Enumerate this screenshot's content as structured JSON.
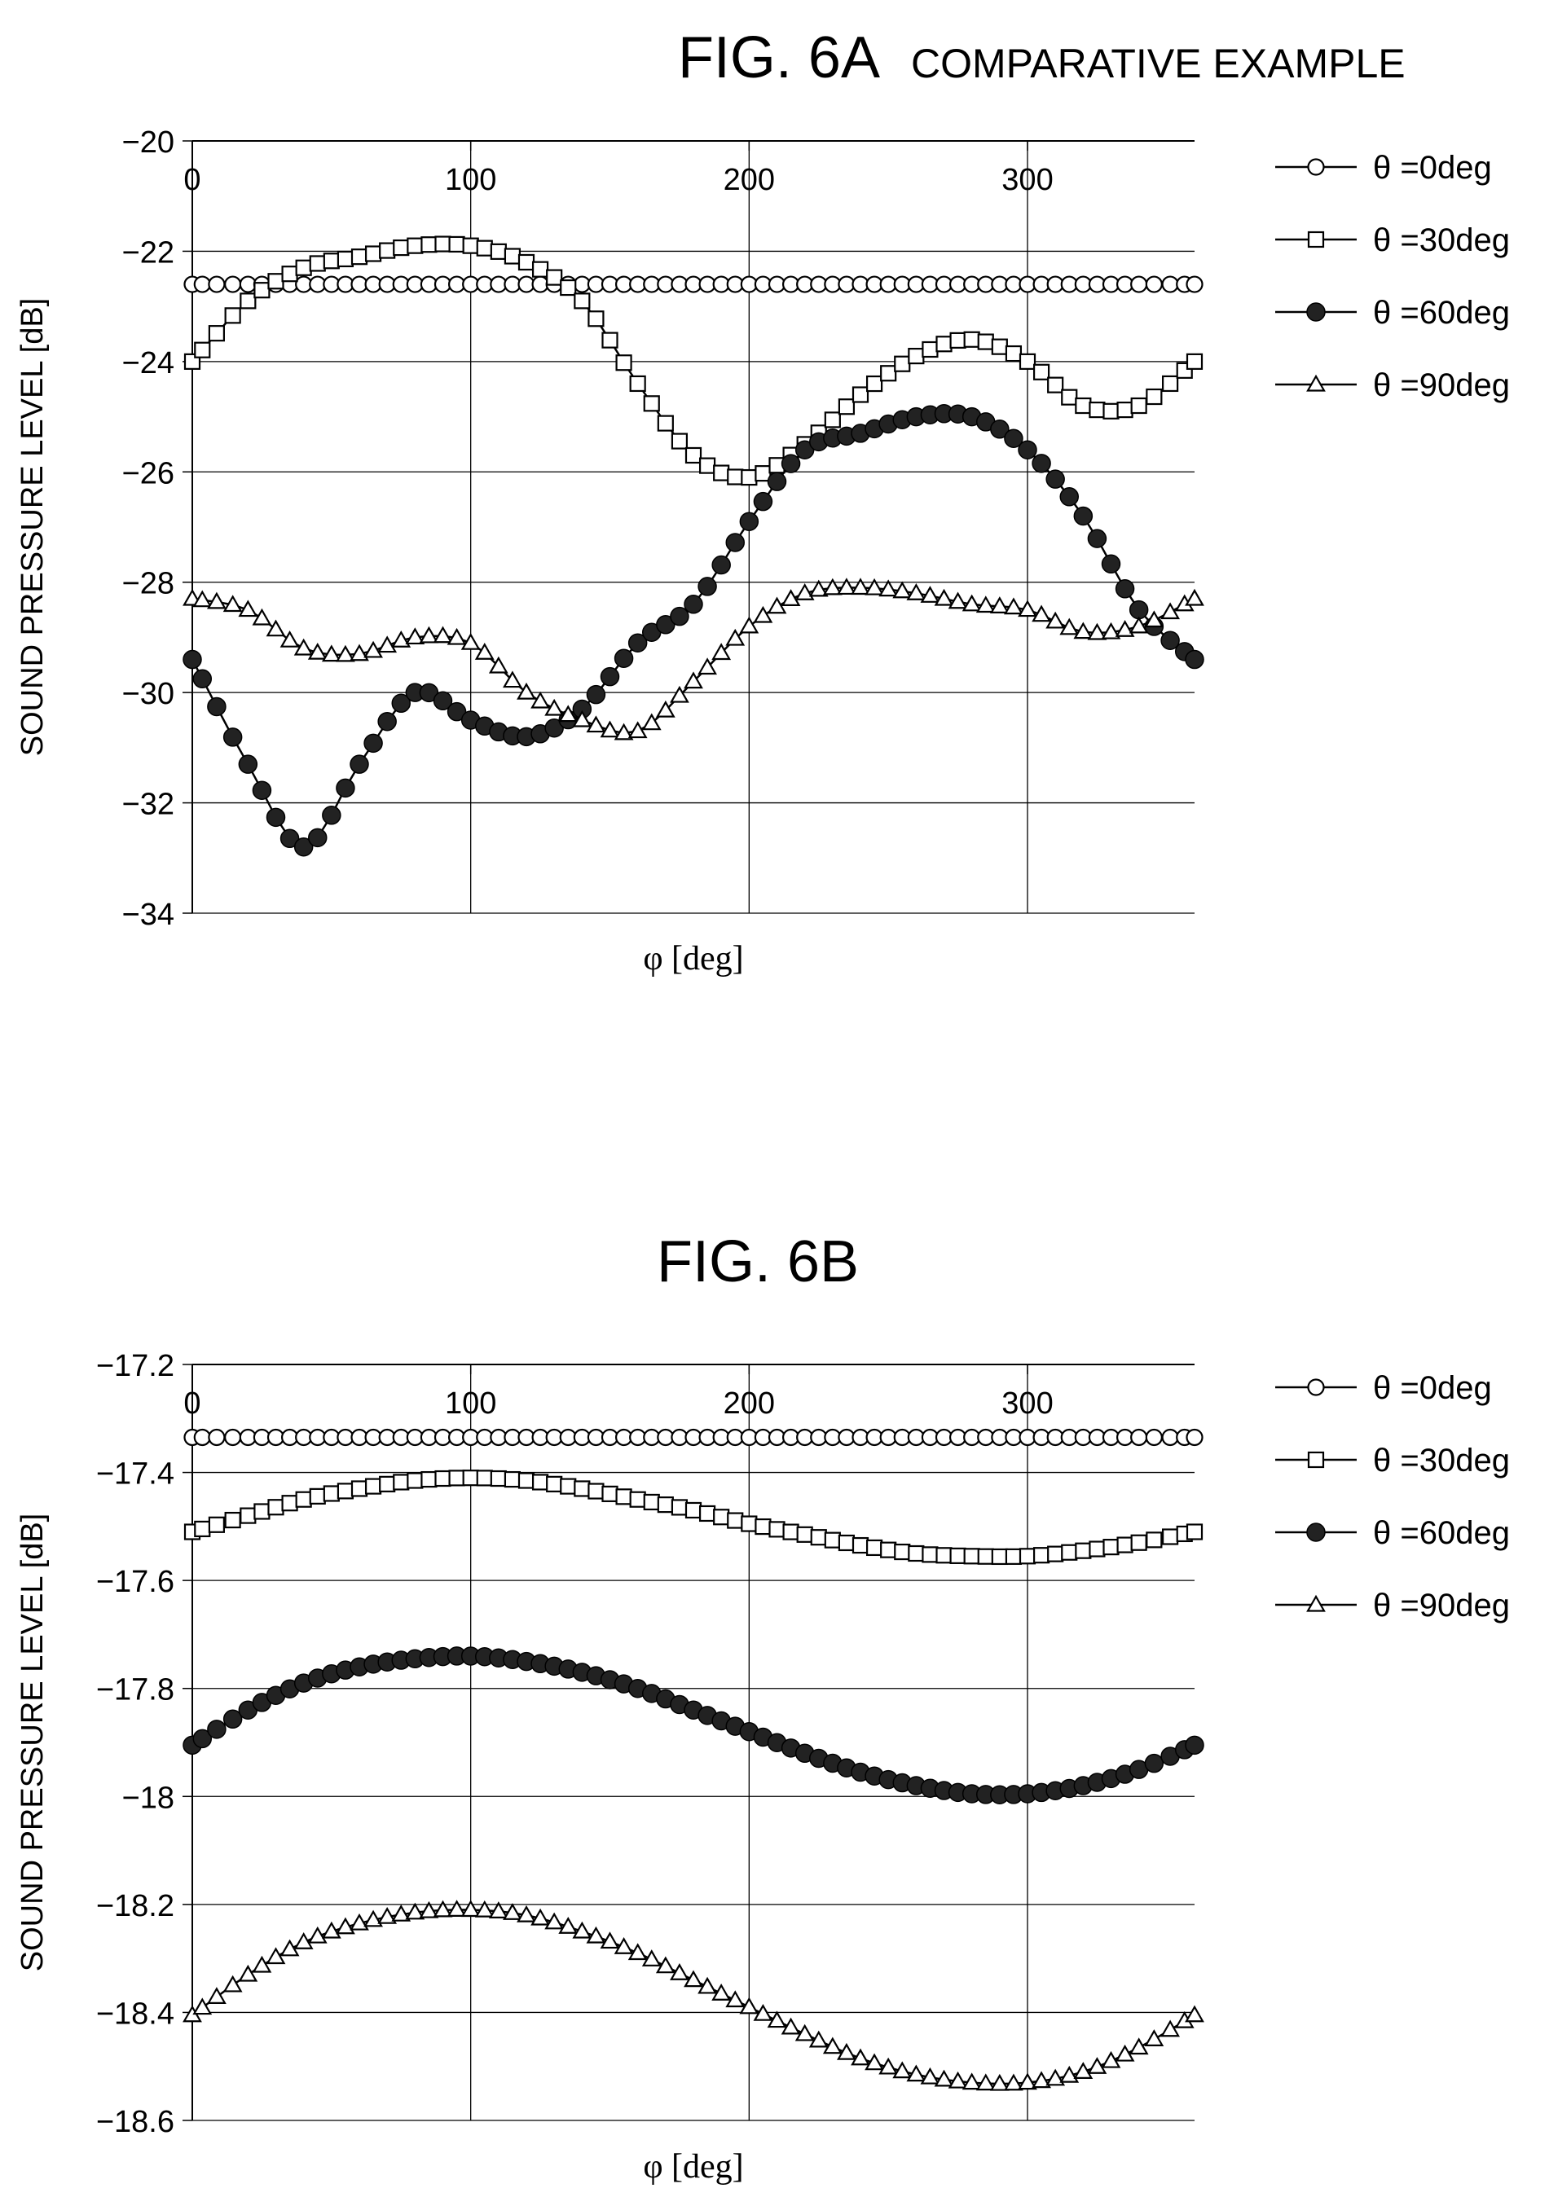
{
  "chart_data": [
    {
      "type": "line",
      "fig_label": "FIG. 6A",
      "subtitle": "COMPARATIVE EXAMPLE",
      "xlabel": "φ [deg]",
      "ylabel": "SOUND PRESSURE LEVEL [dB]",
      "xlim": [
        0,
        360
      ],
      "ylim": [
        -34,
        -20
      ],
      "xticks": [
        0,
        100,
        200,
        300
      ],
      "xtick_labels": [
        "0",
        "100",
        "200",
        "300"
      ],
      "yticks": [
        -34,
        -32,
        -30,
        -28,
        -26,
        -24,
        -22,
        -20
      ],
      "ytick_labels": [
        "−34",
        "−32",
        "−30",
        "−28",
        "−26",
        "−24",
        "−22",
        "−20"
      ],
      "grid": true,
      "legend_position": "right",
      "x": [
        0,
        20,
        40,
        60,
        80,
        100,
        120,
        140,
        160,
        180,
        200,
        220,
        240,
        260,
        280,
        300,
        320,
        340,
        360
      ],
      "series": [
        {
          "name": "θ =0deg",
          "marker": "open-circle",
          "values": [
            -22.6,
            -22.6,
            -22.6,
            -22.6,
            -22.6,
            -22.6,
            -22.6,
            -22.6,
            -22.6,
            -22.6,
            -22.6,
            -22.6,
            -22.6,
            -22.6,
            -22.6,
            -22.6,
            -22.6,
            -22.6,
            -22.6
          ]
        },
        {
          "name": "θ =30deg",
          "marker": "open-square",
          "values": [
            -24.0,
            -22.9,
            -22.3,
            -22.1,
            -21.9,
            -21.9,
            -22.2,
            -22.9,
            -24.4,
            -25.7,
            -26.1,
            -25.5,
            -24.6,
            -23.9,
            -23.6,
            -24.0,
            -24.8,
            -24.8,
            -24.0
          ]
        },
        {
          "name": "θ =60deg",
          "marker": "filled-circle",
          "values": [
            -29.4,
            -31.3,
            -32.8,
            -31.3,
            -30.0,
            -30.5,
            -30.8,
            -30.3,
            -29.1,
            -28.4,
            -26.9,
            -25.6,
            -25.3,
            -25.0,
            -25.0,
            -25.6,
            -26.8,
            -28.5,
            -29.4
          ]
        },
        {
          "name": "θ =90deg",
          "marker": "open-triangle",
          "values": [
            -28.3,
            -28.5,
            -29.2,
            -29.3,
            -29.0,
            -29.1,
            -30.0,
            -30.5,
            -30.7,
            -29.8,
            -28.8,
            -28.2,
            -28.1,
            -28.2,
            -28.4,
            -28.5,
            -28.9,
            -28.8,
            -28.3
          ]
        }
      ]
    },
    {
      "type": "line",
      "fig_label": "FIG. 6B",
      "subtitle": "",
      "xlabel": "φ [deg]",
      "ylabel": "SOUND PRESSURE LEVEL [dB]",
      "xlim": [
        0,
        360
      ],
      "ylim": [
        -18.6,
        -17.2
      ],
      "xticks": [
        0,
        100,
        200,
        300
      ],
      "xtick_labels": [
        "0",
        "100",
        "200",
        "300"
      ],
      "yticks": [
        -18.6,
        -18.4,
        -18.2,
        -18,
        -17.8,
        -17.6,
        -17.4,
        -17.2
      ],
      "ytick_labels": [
        "−18.6",
        "−18.4",
        "−18.2",
        "−18",
        "−17.8",
        "−17.6",
        "−17.4",
        "−17.2"
      ],
      "grid": true,
      "legend_position": "right",
      "x": [
        0,
        20,
        40,
        60,
        80,
        100,
        120,
        140,
        160,
        180,
        200,
        220,
        240,
        260,
        280,
        300,
        320,
        340,
        360
      ],
      "series": [
        {
          "name": "θ =0deg",
          "marker": "open-circle",
          "values": [
            -17.335,
            -17.335,
            -17.335,
            -17.335,
            -17.335,
            -17.335,
            -17.335,
            -17.335,
            -17.335,
            -17.335,
            -17.335,
            -17.335,
            -17.335,
            -17.335,
            -17.335,
            -17.335,
            -17.335,
            -17.335,
            -17.335
          ]
        },
        {
          "name": "θ =30deg",
          "marker": "open-square",
          "values": [
            -17.51,
            -17.48,
            -17.45,
            -17.43,
            -17.415,
            -17.41,
            -17.415,
            -17.43,
            -17.45,
            -17.47,
            -17.495,
            -17.515,
            -17.535,
            -17.55,
            -17.555,
            -17.555,
            -17.545,
            -17.53,
            -17.51
          ]
        },
        {
          "name": "θ =60deg",
          "marker": "filled-circle",
          "values": [
            -17.905,
            -17.84,
            -17.79,
            -17.76,
            -17.745,
            -17.74,
            -17.75,
            -17.77,
            -17.8,
            -17.84,
            -17.88,
            -17.92,
            -17.955,
            -17.98,
            -17.995,
            -17.995,
            -17.98,
            -17.95,
            -17.905
          ]
        },
        {
          "name": "θ =90deg",
          "marker": "open-triangle",
          "values": [
            -18.405,
            -18.33,
            -18.27,
            -18.235,
            -18.215,
            -18.21,
            -18.22,
            -18.25,
            -18.29,
            -18.34,
            -18.39,
            -18.44,
            -18.485,
            -18.515,
            -18.53,
            -18.53,
            -18.51,
            -18.465,
            -18.405
          ]
        }
      ]
    }
  ]
}
